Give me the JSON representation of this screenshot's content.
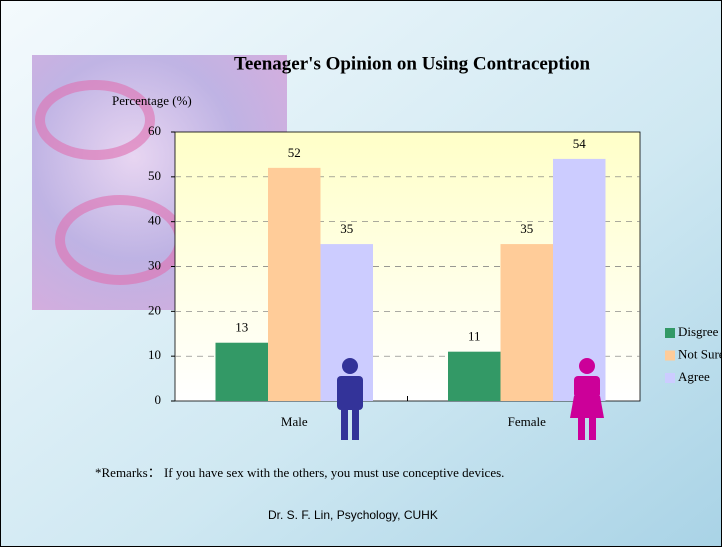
{
  "chart_data": {
    "type": "bar",
    "title": "Teenager's Opinion on Using Contraception",
    "y_label": "Percentage (%)",
    "categories": [
      "Male",
      "Female"
    ],
    "series": [
      {
        "name": "Disgree",
        "color": "#339966",
        "values": [
          13,
          11
        ]
      },
      {
        "name": "Not Sure",
        "color": "#ffcc99",
        "values": [
          52,
          35
        ]
      },
      {
        "name": "Agree",
        "color": "#ccccff",
        "values": [
          35,
          54
        ]
      }
    ],
    "ylim": [
      0,
      60
    ],
    "yticks": [
      0,
      10,
      20,
      30,
      40,
      50,
      60
    ],
    "grid": true,
    "legend": "right"
  },
  "remarks": "*Remarks： If you have sex with the others, you must use conceptive devices.",
  "footer": "Dr. S. F. Lin, Psychology, CUHK"
}
